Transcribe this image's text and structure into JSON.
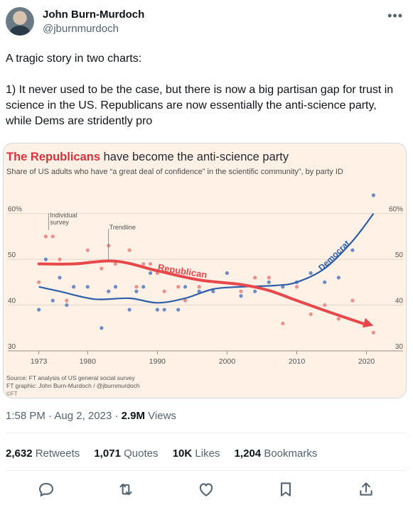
{
  "author": {
    "name": "John Burn-Murdoch",
    "handle": "@jburnmurdoch"
  },
  "tweet": {
    "line1": "A tragic story in two charts:",
    "line2": "1) It never used to be the case, but there is now a big partisan gap for trust in science in the US. Republicans are now essentially the anti-science party, while Dems are stridently pro"
  },
  "meta": {
    "time": "1:58 PM",
    "sep": "·",
    "date": "Aug 2, 2023",
    "views_num": "2.9M",
    "views_label": "Views"
  },
  "stats": [
    {
      "num": "2,632",
      "label": "Retweets"
    },
    {
      "num": "1,071",
      "label": "Quotes"
    },
    {
      "num": "10K",
      "label": "Likes"
    },
    {
      "num": "1,204",
      "label": "Bookmarks"
    }
  ],
  "actions": [
    "reply-icon",
    "retweet-icon",
    "like-icon",
    "bookmark-icon",
    "share-icon"
  ],
  "colors": {
    "background_card": "#fff1e5",
    "republican": "#e8474b",
    "democrat": "#2f5ea8",
    "republican_points": "#ef8f8c",
    "democrat_points": "#6c8cc7"
  },
  "chart_data": {
    "type": "scatter",
    "title_highlight": "The Republicans",
    "title_rest": " have become the anti-science party",
    "subtitle": "Share of US adults who have “a great deal of confidence” in the scientific community”, by party ID",
    "x_ticks": [
      1973,
      1980,
      1990,
      2000,
      2010,
      2020
    ],
    "y_ticks": [
      30,
      40,
      50,
      60
    ],
    "y_tick_labels": [
      "30",
      "40",
      "50",
      "60%"
    ],
    "xlim": [
      1971,
      2023
    ],
    "ylim": [
      30,
      66
    ],
    "annotations": {
      "individual_survey": [
        "Individual",
        "survey"
      ],
      "trendline": "Trendline"
    },
    "source": "Source: FT analysis of US general social survey",
    "credit": "FT graphic: John Burn-Murdoch / @jburnmurdoch",
    "ft": "©FT",
    "series": [
      {
        "name": "Republican",
        "points": [
          [
            1973,
            45
          ],
          [
            1974,
            55
          ],
          [
            1975,
            55
          ],
          [
            1976,
            50
          ],
          [
            1977,
            41
          ],
          [
            1978,
            44
          ],
          [
            1980,
            52
          ],
          [
            1982,
            48
          ],
          [
            1983,
            53
          ],
          [
            1984,
            49
          ],
          [
            1986,
            52
          ],
          [
            1987,
            44
          ],
          [
            1988,
            49
          ],
          [
            1989,
            49
          ],
          [
            1990,
            47
          ],
          [
            1991,
            43
          ],
          [
            1993,
            44
          ],
          [
            1994,
            41
          ],
          [
            1996,
            44
          ],
          [
            1998,
            43
          ],
          [
            2000,
            47
          ],
          [
            2002,
            43
          ],
          [
            2004,
            46
          ],
          [
            2006,
            46
          ],
          [
            2008,
            36
          ],
          [
            2010,
            44
          ],
          [
            2012,
            38
          ],
          [
            2014,
            40
          ],
          [
            2016,
            37
          ],
          [
            2018,
            41
          ],
          [
            2021,
            34
          ]
        ],
        "trend": [
          [
            1973,
            49
          ],
          [
            1978,
            49
          ],
          [
            1984,
            49.6
          ],
          [
            1990,
            47.5
          ],
          [
            1996,
            45.5
          ],
          [
            2002,
            44.5
          ],
          [
            2006,
            43.2
          ],
          [
            2010,
            41
          ],
          [
            2015,
            38.3
          ],
          [
            2021,
            35.5
          ]
        ]
      },
      {
        "name": "Democrat",
        "points": [
          [
            1973,
            39
          ],
          [
            1974,
            50
          ],
          [
            1975,
            41
          ],
          [
            1976,
            46
          ],
          [
            1977,
            40
          ],
          [
            1978,
            44
          ],
          [
            1980,
            44
          ],
          [
            1982,
            35
          ],
          [
            1983,
            43
          ],
          [
            1984,
            44
          ],
          [
            1986,
            39
          ],
          [
            1987,
            43
          ],
          [
            1988,
            44
          ],
          [
            1989,
            47
          ],
          [
            1990,
            39
          ],
          [
            1991,
            39
          ],
          [
            1993,
            39
          ],
          [
            1994,
            44
          ],
          [
            1996,
            43
          ],
          [
            1998,
            43
          ],
          [
            2000,
            47
          ],
          [
            2002,
            42
          ],
          [
            2004,
            43
          ],
          [
            2006,
            45
          ],
          [
            2008,
            44
          ],
          [
            2010,
            45
          ],
          [
            2012,
            47
          ],
          [
            2014,
            45
          ],
          [
            2016,
            46
          ],
          [
            2018,
            52
          ],
          [
            2021,
            64
          ]
        ],
        "trend": [
          [
            1973,
            44
          ],
          [
            1976,
            43
          ],
          [
            1981,
            41.3
          ],
          [
            1986,
            41.5
          ],
          [
            1990,
            40.5
          ],
          [
            1994,
            41.5
          ],
          [
            1998,
            43.5
          ],
          [
            2002,
            44
          ],
          [
            2007,
            44.3
          ],
          [
            2010,
            45
          ],
          [
            2014,
            48
          ],
          [
            2018,
            54
          ],
          [
            2021,
            60
          ]
        ]
      }
    ]
  }
}
